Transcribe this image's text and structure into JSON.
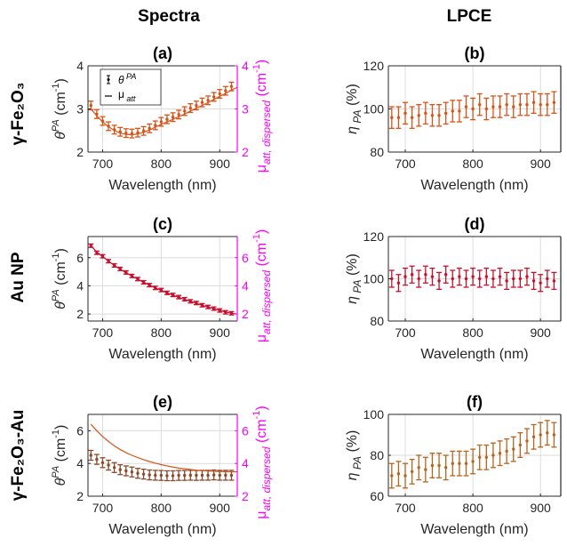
{
  "column_headers": [
    "Spectra",
    "LPCE"
  ],
  "row_labels": [
    "γ-Fe₂O₃",
    "Au NP",
    "γ-Fe₂O₃-Au"
  ],
  "chart_data": [
    {
      "id": "a",
      "panel_label": "(a)",
      "type": "line",
      "xlabel": "Wavelength (nm)",
      "ylabel": "θ^PA (cm⁻¹)",
      "y2label": "μ att, dispersed (cm⁻¹)",
      "xlim": [
        675,
        930
      ],
      "ylim": [
        2,
        4
      ],
      "y2lim": [
        2,
        4
      ],
      "xticks": [
        700,
        800,
        900
      ],
      "yticks": [
        2,
        3,
        4
      ],
      "y2ticks": [
        2,
        3,
        4
      ],
      "grid": true,
      "legend": {
        "placement": "top-left",
        "entries": [
          "θ^PA",
          "μ att"
        ]
      },
      "color": "#d95319",
      "series": [
        {
          "name": "θ^PA",
          "kind": "errorbar",
          "x": [
            680,
            690,
            700,
            710,
            720,
            730,
            740,
            750,
            760,
            770,
            780,
            790,
            800,
            810,
            820,
            830,
            840,
            850,
            860,
            870,
            880,
            890,
            900,
            910,
            920
          ],
          "y": [
            3.08,
            2.88,
            2.72,
            2.6,
            2.52,
            2.47,
            2.44,
            2.43,
            2.45,
            2.49,
            2.55,
            2.62,
            2.7,
            2.76,
            2.81,
            2.87,
            2.95,
            3.02,
            3.08,
            3.15,
            3.2,
            3.28,
            3.35,
            3.42,
            3.52
          ],
          "err": [
            0.1,
            0.1,
            0.1,
            0.1,
            0.1,
            0.1,
            0.1,
            0.1,
            0.1,
            0.1,
            0.1,
            0.1,
            0.1,
            0.1,
            0.1,
            0.1,
            0.1,
            0.1,
            0.1,
            0.1,
            0.1,
            0.1,
            0.1,
            0.1,
            0.1
          ]
        },
        {
          "name": "μ att",
          "kind": "line",
          "x": [
            680,
            690,
            700,
            710,
            720,
            730,
            740,
            750,
            760,
            770,
            780,
            790,
            800,
            810,
            820,
            830,
            840,
            850,
            860,
            870,
            880,
            890,
            900,
            910,
            920,
            930
          ],
          "y": [
            3.0,
            2.84,
            2.7,
            2.59,
            2.5,
            2.44,
            2.41,
            2.4,
            2.42,
            2.46,
            2.51,
            2.58,
            2.64,
            2.7,
            2.76,
            2.82,
            2.88,
            2.95,
            3.02,
            3.08,
            3.15,
            3.22,
            3.29,
            3.36,
            3.44,
            3.5
          ]
        }
      ]
    },
    {
      "id": "b",
      "panel_label": "(b)",
      "type": "scatter",
      "xlabel": "Wavelength (nm)",
      "ylabel": "η PA (%)",
      "xlim": [
        675,
        930
      ],
      "ylim": [
        80,
        120
      ],
      "xticks": [
        700,
        800,
        900
      ],
      "yticks": [
        80,
        100,
        120
      ],
      "grid": true,
      "color": "#d95319",
      "series": [
        {
          "kind": "errorbar",
          "x": [
            680,
            690,
            700,
            710,
            720,
            730,
            740,
            750,
            760,
            770,
            780,
            790,
            800,
            810,
            820,
            830,
            840,
            850,
            860,
            870,
            880,
            890,
            900,
            910,
            920
          ],
          "y": [
            96,
            96,
            98,
            96,
            97,
            98,
            97,
            97,
            98,
            99,
            99,
            101,
            100,
            102,
            100,
            101,
            101,
            102,
            101,
            102,
            102,
            103,
            102,
            102,
            103
          ],
          "err": [
            5,
            5,
            5,
            5,
            5,
            5,
            5,
            5,
            5,
            5,
            5,
            5,
            5,
            5,
            5,
            5,
            5,
            5,
            5,
            5,
            5,
            5,
            5,
            5,
            5
          ]
        }
      ]
    },
    {
      "id": "c",
      "panel_label": "(c)",
      "type": "line",
      "xlabel": "Wavelength (nm)",
      "ylabel": "θ^PA (cm⁻¹)",
      "y2label": "μ att, dispersed (cm⁻¹)",
      "xlim": [
        675,
        930
      ],
      "ylim": [
        1.5,
        7.5
      ],
      "y2lim": [
        1.5,
        7.5
      ],
      "xticks": [
        700,
        800,
        900
      ],
      "yticks": [
        2,
        4,
        6
      ],
      "y2ticks": [
        2,
        4,
        6
      ],
      "grid": true,
      "color": "#c8102e",
      "series": [
        {
          "name": "θ^PA",
          "kind": "errorbar",
          "x": [
            680,
            690,
            700,
            710,
            720,
            730,
            740,
            750,
            760,
            770,
            780,
            790,
            800,
            810,
            820,
            830,
            840,
            850,
            860,
            870,
            880,
            890,
            900,
            910,
            920
          ],
          "y": [
            6.85,
            6.35,
            6.1,
            5.75,
            5.45,
            5.2,
            4.95,
            4.7,
            4.48,
            4.25,
            4.05,
            3.85,
            3.7,
            3.5,
            3.35,
            3.2,
            3.05,
            2.9,
            2.78,
            2.62,
            2.5,
            2.38,
            2.25,
            2.12,
            2.05
          ],
          "err": [
            0.12,
            0.12,
            0.12,
            0.12,
            0.12,
            0.12,
            0.12,
            0.12,
            0.12,
            0.12,
            0.12,
            0.12,
            0.12,
            0.12,
            0.12,
            0.12,
            0.12,
            0.12,
            0.12,
            0.12,
            0.12,
            0.12,
            0.12,
            0.12,
            0.12
          ]
        },
        {
          "name": "μ att",
          "kind": "line",
          "x": [
            680,
            690,
            700,
            710,
            720,
            730,
            740,
            750,
            760,
            770,
            780,
            790,
            800,
            810,
            820,
            830,
            840,
            850,
            860,
            870,
            880,
            890,
            900,
            910,
            920,
            930
          ],
          "y": [
            6.85,
            6.4,
            6.08,
            5.75,
            5.45,
            5.18,
            4.93,
            4.7,
            4.47,
            4.25,
            4.05,
            3.85,
            3.68,
            3.5,
            3.34,
            3.18,
            3.03,
            2.9,
            2.76,
            2.62,
            2.5,
            2.38,
            2.26,
            2.14,
            2.05,
            2.0
          ]
        }
      ]
    },
    {
      "id": "d",
      "panel_label": "(d)",
      "type": "scatter",
      "xlabel": "Wavelength (nm)",
      "ylabel": "η PA (%)",
      "xlim": [
        675,
        930
      ],
      "ylim": [
        80,
        120
      ],
      "xticks": [
        700,
        800,
        900
      ],
      "yticks": [
        80,
        100,
        120
      ],
      "grid": true,
      "color": "#c8102e",
      "series": [
        {
          "kind": "errorbar",
          "x": [
            680,
            690,
            700,
            710,
            720,
            730,
            740,
            750,
            760,
            770,
            780,
            790,
            800,
            810,
            820,
            830,
            840,
            850,
            860,
            870,
            880,
            890,
            900,
            910,
            920
          ],
          "y": [
            100,
            98,
            101,
            102,
            100,
            102,
            101,
            99,
            102,
            100,
            101,
            100,
            101,
            100,
            101,
            100,
            101,
            99,
            100,
            100,
            101,
            99,
            98,
            100,
            99
          ],
          "err": [
            4,
            4,
            4,
            4,
            4,
            4,
            4,
            4,
            4,
            4,
            4,
            4,
            4,
            4,
            4,
            4,
            4,
            4,
            4,
            4,
            4,
            4,
            4,
            4,
            4
          ]
        }
      ]
    },
    {
      "id": "e",
      "panel_label": "(e)",
      "type": "line",
      "xlabel": "Wavelength (nm)",
      "ylabel": "θ^PA (cm⁻¹)",
      "y2label": "μ att, dispersed (cm⁻¹)",
      "xlim": [
        675,
        930
      ],
      "ylim": [
        2,
        7
      ],
      "y2lim": [
        2,
        7
      ],
      "xticks": [
        700,
        800,
        900
      ],
      "yticks": [
        2,
        4,
        6
      ],
      "y2ticks": [
        2,
        4,
        6
      ],
      "grid": true,
      "color": "#8b4a2b",
      "line_color": "#d95319",
      "series": [
        {
          "name": "θ^PA",
          "kind": "errorbar",
          "x": [
            680,
            690,
            700,
            710,
            720,
            730,
            740,
            750,
            760,
            770,
            780,
            790,
            800,
            810,
            820,
            830,
            840,
            850,
            860,
            870,
            880,
            890,
            900,
            910,
            920
          ],
          "y": [
            4.5,
            4.25,
            4.05,
            3.9,
            3.75,
            3.62,
            3.55,
            3.48,
            3.4,
            3.35,
            3.3,
            3.28,
            3.27,
            3.25,
            3.25,
            3.27,
            3.27,
            3.28,
            3.27,
            3.28,
            3.28,
            3.3,
            3.28,
            3.28,
            3.28
          ],
          "err": [
            0.3,
            0.3,
            0.3,
            0.3,
            0.3,
            0.3,
            0.3,
            0.3,
            0.3,
            0.3,
            0.3,
            0.3,
            0.3,
            0.3,
            0.3,
            0.3,
            0.3,
            0.3,
            0.3,
            0.3,
            0.3,
            0.3,
            0.3,
            0.3,
            0.3
          ]
        },
        {
          "name": "μ att",
          "kind": "line",
          "x": [
            680,
            690,
            700,
            710,
            720,
            730,
            740,
            750,
            760,
            770,
            780,
            790,
            800,
            810,
            820,
            830,
            840,
            850,
            860,
            870,
            880,
            890,
            900,
            910,
            920,
            930
          ],
          "y": [
            6.4,
            6.0,
            5.65,
            5.35,
            5.08,
            4.85,
            4.66,
            4.5,
            4.36,
            4.23,
            4.12,
            4.02,
            3.93,
            3.85,
            3.78,
            3.72,
            3.67,
            3.63,
            3.59,
            3.56,
            3.54,
            3.52,
            3.51,
            3.5,
            3.49,
            3.49
          ]
        }
      ]
    },
    {
      "id": "f",
      "panel_label": "(f)",
      "type": "scatter",
      "xlabel": "Wavelength (nm)",
      "ylabel": "η PA (%)",
      "xlim": [
        675,
        930
      ],
      "ylim": [
        60,
        100
      ],
      "xticks": [
        700,
        800,
        900
      ],
      "yticks": [
        60,
        80,
        100
      ],
      "grid": true,
      "color": "#b5651d",
      "series": [
        {
          "kind": "errorbar",
          "x": [
            680,
            690,
            700,
            710,
            720,
            730,
            740,
            750,
            760,
            770,
            780,
            790,
            800,
            810,
            820,
            830,
            840,
            850,
            860,
            870,
            880,
            890,
            900,
            910,
            920
          ],
          "y": [
            70,
            71,
            70,
            72,
            74,
            73,
            75,
            75,
            74,
            76,
            76,
            76,
            77,
            79,
            79,
            80,
            81,
            82,
            83,
            85,
            87,
            89,
            90,
            91,
            90
          ],
          "err": [
            6,
            6,
            6,
            6,
            6,
            6,
            6,
            6,
            6,
            6,
            6,
            6,
            6,
            6,
            6,
            6,
            6,
            6,
            6,
            6,
            6,
            6,
            6,
            6,
            6
          ]
        }
      ]
    }
  ]
}
